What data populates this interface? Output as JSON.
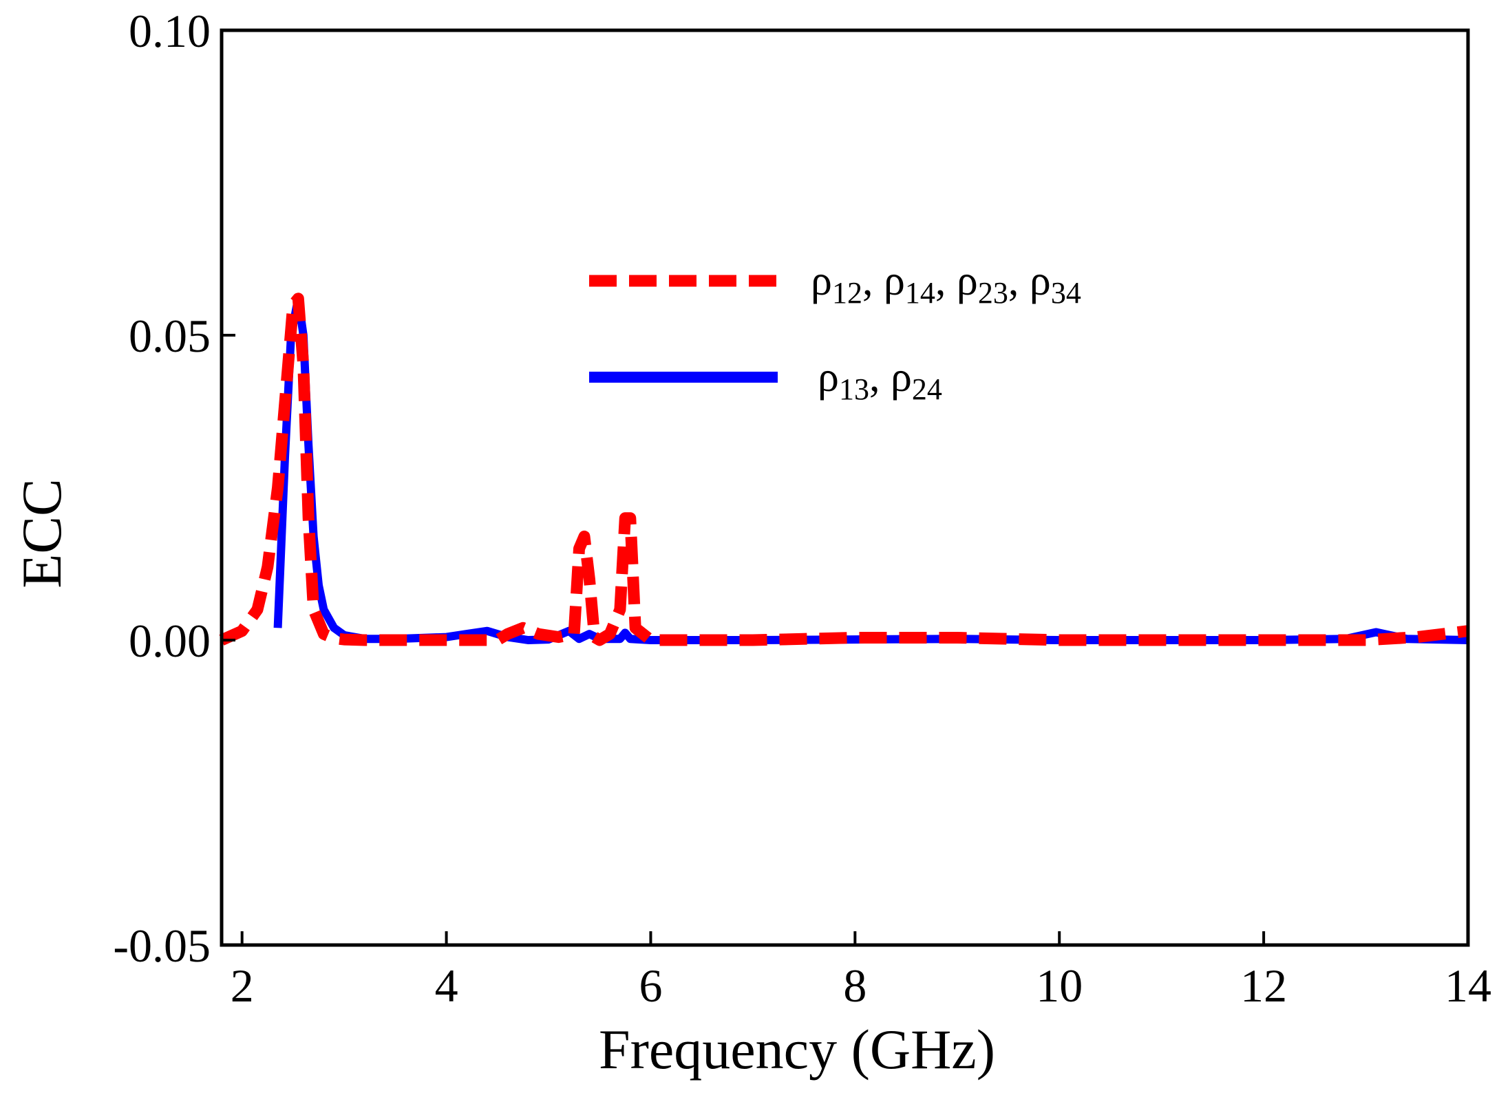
{
  "chart_data": {
    "type": "line",
    "title": "",
    "xlabel": "Frequency (GHz)",
    "ylabel": "ECC",
    "xlim": [
      1.8,
      14
    ],
    "ylim": [
      -0.05,
      0.1
    ],
    "xticks": [
      "2",
      "4",
      "6",
      "8",
      "10",
      "12",
      "14"
    ],
    "yticks": [
      "0.10",
      "0.05",
      "0.00",
      "-0.05"
    ],
    "xtick_values": [
      2,
      4,
      6,
      8,
      10,
      12,
      14
    ],
    "ytick_values": [
      0.1,
      0.05,
      0.0,
      -0.05
    ],
    "grid": false,
    "legend_position": "top-right",
    "colors": {
      "red_series": "#ff0000",
      "blue_series": "#0000ff",
      "axes": "#000000"
    },
    "series": [
      {
        "name": "ρ12, ρ14, ρ23, ρ34",
        "legend_parts": [
          {
            "base": "ρ",
            "sub": "12",
            "sep": ", "
          },
          {
            "base": "ρ",
            "sub": "14",
            "sep": ", "
          },
          {
            "base": "ρ",
            "sub": "23",
            "sep": ", "
          },
          {
            "base": "ρ",
            "sub": "34",
            "sep": ""
          }
        ],
        "style": "dashed",
        "color": "#ff0000",
        "x": [
          1.8,
          2.0,
          2.15,
          2.25,
          2.35,
          2.45,
          2.5,
          2.55,
          2.6,
          2.65,
          2.7,
          2.8,
          2.9,
          3.0,
          3.2,
          3.5,
          4.0,
          4.5,
          4.6,
          4.75,
          4.9,
          5.1,
          5.25,
          5.3,
          5.35,
          5.4,
          5.45,
          5.5,
          5.6,
          5.7,
          5.75,
          5.8,
          5.85,
          6.0,
          7.0,
          8.0,
          8.5,
          9.0,
          9.5,
          10.0,
          11.0,
          12.0,
          13.0,
          13.5,
          14.0
        ],
        "y": [
          0.0,
          0.0015,
          0.005,
          0.012,
          0.025,
          0.045,
          0.055,
          0.056,
          0.045,
          0.02,
          0.005,
          0.001,
          0.0003,
          0.0001,
          0.0,
          0.0,
          0.0,
          0.0,
          0.001,
          0.002,
          0.001,
          0.0005,
          0.001,
          0.015,
          0.017,
          0.01,
          0.0005,
          0.0,
          0.001,
          0.005,
          0.02,
          0.02,
          0.002,
          0.0,
          0.0,
          0.0004,
          0.0004,
          0.0004,
          0.0002,
          0.0,
          0.0,
          0.0,
          0.0,
          0.0005,
          0.0015
        ]
      },
      {
        "name": "ρ13, ρ24",
        "legend_parts": [
          {
            "base": "ρ",
            "sub": "13",
            "sep": ", "
          },
          {
            "base": "ρ",
            "sub": "24",
            "sep": ""
          }
        ],
        "style": "solid",
        "color": "#0000ff",
        "x": [
          2.35,
          2.42,
          2.48,
          2.55,
          2.6,
          2.65,
          2.7,
          2.75,
          2.8,
          2.9,
          3.0,
          3.2,
          3.5,
          4.0,
          4.2,
          4.4,
          4.6,
          4.8,
          5.0,
          5.2,
          5.3,
          5.4,
          5.5,
          5.7,
          5.75,
          5.8,
          6.0,
          7.0,
          8.0,
          9.0,
          10.0,
          11.0,
          12.0,
          12.8,
          13.1,
          13.4,
          14.0
        ],
        "y": [
          0.002,
          0.03,
          0.05,
          0.056,
          0.05,
          0.032,
          0.017,
          0.009,
          0.005,
          0.002,
          0.0008,
          0.0002,
          0.0002,
          0.0005,
          0.001,
          0.0015,
          0.0005,
          0.0,
          0.0001,
          0.0015,
          0.0002,
          0.001,
          0.0002,
          0.0002,
          0.0012,
          0.0002,
          0.0,
          0.0,
          0.0001,
          0.0002,
          0.0,
          0.0,
          0.0,
          0.0002,
          0.0013,
          0.0002,
          0.0
        ]
      }
    ]
  }
}
